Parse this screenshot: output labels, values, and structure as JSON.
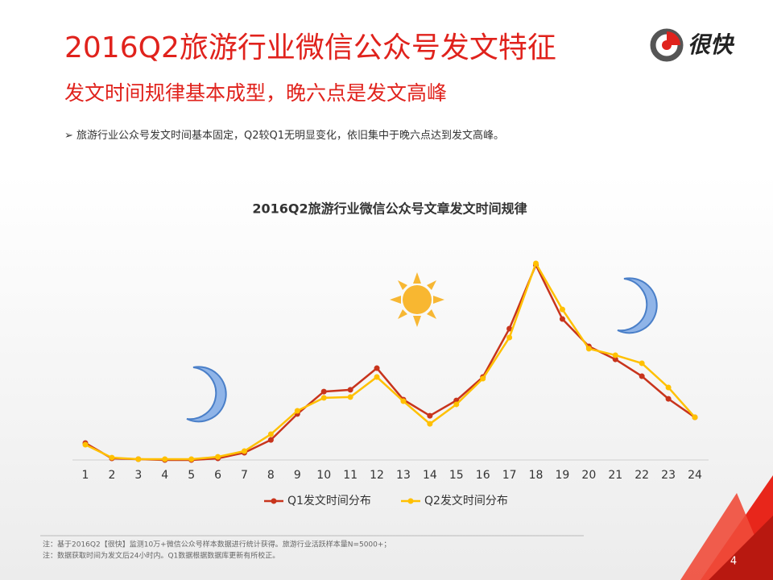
{
  "header": {
    "title": "2016Q2旅游行业微信公众号发文特征",
    "subtitle": "发文时间规律基本成型，晚六点是发文高峰",
    "logo": "很快"
  },
  "bullet": "旅游行业公众号发文时间基本固定，Q2较Q1无明显变化，依旧集中于晚六点达到发文高峰。",
  "chart_data": {
    "type": "line",
    "title": "2016Q2旅游行业微信公众号文章发文时间规律",
    "categories": [
      "1",
      "2",
      "3",
      "4",
      "5",
      "6",
      "7",
      "8",
      "9",
      "10",
      "11",
      "12",
      "13",
      "14",
      "15",
      "16",
      "17",
      "18",
      "19",
      "20",
      "21",
      "22",
      "23",
      "24"
    ],
    "series": [
      {
        "name": "Q1发文时间分布",
        "color": "#c8341c",
        "values": [
          8.6,
          0.8,
          0.4,
          0,
          0,
          0.8,
          3.7,
          10.2,
          23.4,
          34.8,
          35.7,
          46.7,
          30.7,
          22.5,
          30.3,
          42.2,
          66.8,
          99.2,
          71.7,
          57.8,
          51.2,
          42.6,
          31.1,
          21.7
        ]
      },
      {
        "name": "Q2发文时间分布",
        "color": "#ffc000",
        "values": [
          7.8,
          1.2,
          0.4,
          0.4,
          0.4,
          1.6,
          4.5,
          13.1,
          25.0,
          31.6,
          32.0,
          42.2,
          29.9,
          18.4,
          28.3,
          41.4,
          62.3,
          100,
          76.6,
          56.6,
          53.3,
          49.2,
          36.9,
          21.7
        ]
      }
    ],
    "legend": "bottom"
  },
  "notes": [
    "注：基于2016Q2【很快】监测10万+微信公众号样本数据进行统计获得。旅游行业活跃样本量N=5000+；",
    "注：数据获取时间为发文后24小时内。Q1数据根据数据库更新有所校正。"
  ],
  "page_number": "4"
}
